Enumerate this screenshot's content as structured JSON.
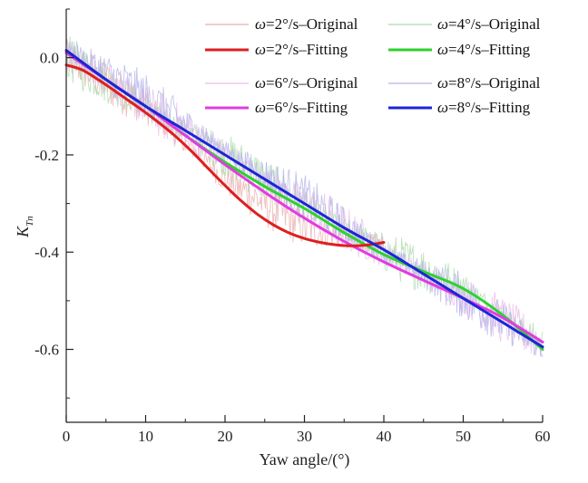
{
  "chart_data": {
    "type": "line",
    "title": "",
    "xlabel": "Yaw angle/(°)",
    "ylabel": "K_Tn",
    "xlim": [
      0,
      60
    ],
    "ylim": [
      -0.75,
      0.1
    ],
    "x_ticks": [
      0,
      10,
      20,
      30,
      40,
      50,
      60
    ],
    "x_tick_labels": [
      "0",
      "10",
      "20",
      "30",
      "40",
      "50",
      "60"
    ],
    "y_ticks": [
      0.0,
      -0.2,
      -0.4,
      -0.6
    ],
    "y_tick_labels": [
      "0.0",
      "-0.2",
      "-0.4",
      "-0.6"
    ],
    "grid": false,
    "legend_position": "top-right",
    "series": [
      {
        "name": "ω=2°/s–Original",
        "kind": "original",
        "color": "#e8aaaa",
        "x_range": [
          0,
          40
        ],
        "trend": [
          [
            0,
            0.0
          ],
          [
            10,
            -0.1
          ],
          [
            20,
            -0.25
          ],
          [
            30,
            -0.35
          ],
          [
            40,
            -0.39
          ]
        ]
      },
      {
        "name": "ω=4°/s–Original",
        "kind": "original",
        "color": "#a8d8a8",
        "x_range": [
          0,
          60
        ],
        "trend": [
          [
            0,
            0.0
          ],
          [
            10,
            -0.1
          ],
          [
            20,
            -0.2
          ],
          [
            30,
            -0.3
          ],
          [
            40,
            -0.4
          ],
          [
            50,
            -0.47
          ],
          [
            60,
            -0.59
          ]
        ]
      },
      {
        "name": "ω=2°/s–Fitting",
        "kind": "fitting",
        "color": "#dd1f1f",
        "x": [
          0,
          2,
          4,
          6,
          8,
          10,
          12,
          14,
          16,
          18,
          20,
          22,
          24,
          26,
          28,
          30,
          32,
          34,
          36,
          38,
          40
        ],
        "y": [
          -0.015,
          -0.025,
          -0.045,
          -0.067,
          -0.09,
          -0.113,
          -0.138,
          -0.165,
          -0.196,
          -0.23,
          -0.263,
          -0.294,
          -0.321,
          -0.343,
          -0.36,
          -0.372,
          -0.38,
          -0.385,
          -0.387,
          -0.385,
          -0.38
        ]
      },
      {
        "name": "ω=4°/s–Fitting",
        "kind": "fitting",
        "color": "#2ed12e",
        "x": [
          0,
          5,
          10,
          15,
          20,
          25,
          30,
          35,
          40,
          45,
          50,
          55,
          60
        ],
        "y": [
          0.01,
          -0.045,
          -0.1,
          -0.16,
          -0.215,
          -0.265,
          -0.31,
          -0.36,
          -0.405,
          -0.44,
          -0.475,
          -0.53,
          -0.6
        ]
      },
      {
        "name": "ω=6°/s–Original",
        "kind": "original",
        "color": "#e8b8e8",
        "x_range": [
          0,
          60
        ],
        "trend": [
          [
            0,
            0.0
          ],
          [
            10,
            -0.1
          ],
          [
            20,
            -0.2
          ],
          [
            30,
            -0.3
          ],
          [
            40,
            -0.4
          ],
          [
            50,
            -0.49
          ],
          [
            60,
            -0.59
          ]
        ]
      },
      {
        "name": "ω=8°/s–Original",
        "kind": "original",
        "color": "#b0b0e8",
        "x_range": [
          0,
          60
        ],
        "trend": [
          [
            0,
            0.02
          ],
          [
            10,
            -0.08
          ],
          [
            20,
            -0.19
          ],
          [
            30,
            -0.29
          ],
          [
            40,
            -0.4
          ],
          [
            50,
            -0.49
          ],
          [
            60,
            -0.6
          ]
        ]
      },
      {
        "name": "ω=6°/s–Fitting",
        "kind": "fitting",
        "color": "#e23be2",
        "x": [
          0,
          5,
          10,
          15,
          20,
          25,
          30,
          35,
          40,
          45,
          50,
          55,
          60
        ],
        "y": [
          0.01,
          -0.045,
          -0.1,
          -0.16,
          -0.22,
          -0.277,
          -0.33,
          -0.378,
          -0.42,
          -0.458,
          -0.495,
          -0.535,
          -0.585
        ]
      },
      {
        "name": "ω=8°/s–Fitting",
        "kind": "fitting",
        "color": "#1c25d6",
        "x": [
          0,
          5,
          10,
          15,
          20,
          25,
          30,
          35,
          40,
          45,
          50,
          55,
          60
        ],
        "y": [
          0.015,
          -0.045,
          -0.1,
          -0.15,
          -0.2,
          -0.25,
          -0.3,
          -0.35,
          -0.395,
          -0.445,
          -0.495,
          -0.545,
          -0.595
        ]
      }
    ]
  }
}
